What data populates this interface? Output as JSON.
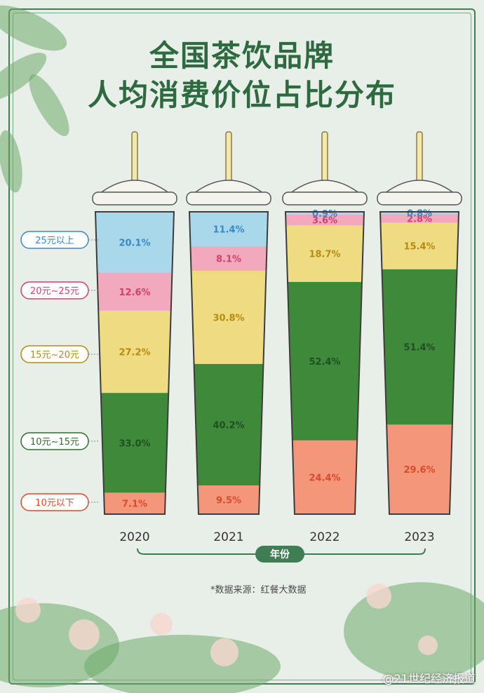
{
  "title_line1": "全国茶饮品牌",
  "title_line2": "人均消费价位占比分布",
  "source": "*数据来源：红餐大数据",
  "watermark": "@21世纪经济报道",
  "chart_data": {
    "type": "bar",
    "stacked": true,
    "normalized": true,
    "xlabel": "年份",
    "categories": [
      "2020",
      "2021",
      "2022",
      "2023"
    ],
    "series": [
      {
        "name": "10元以下",
        "color": "#f3967a",
        "text_color": "#d84c2c",
        "values": [
          7.1,
          9.5,
          24.4,
          29.6
        ]
      },
      {
        "name": "10元~15元",
        "color": "#3f8a3a",
        "text_color": "#1f4f24",
        "values": [
          33.0,
          40.2,
          52.4,
          51.4
        ]
      },
      {
        "name": "15元~20元",
        "color": "#efdb82",
        "text_color": "#b58c12",
        "values": [
          27.2,
          30.8,
          18.7,
          15.4
        ]
      },
      {
        "name": "20元~25元",
        "color": "#f2a8bd",
        "text_color": "#d6406d",
        "values": [
          12.6,
          8.1,
          3.6,
          2.8
        ]
      },
      {
        "name": "25元以上",
        "color": "#a8d8ea",
        "text_color": "#3b88c8",
        "values": [
          20.1,
          11.4,
          0.9,
          0.8
        ]
      }
    ],
    "legend_position": "left",
    "ylim": [
      0,
      100
    ]
  }
}
